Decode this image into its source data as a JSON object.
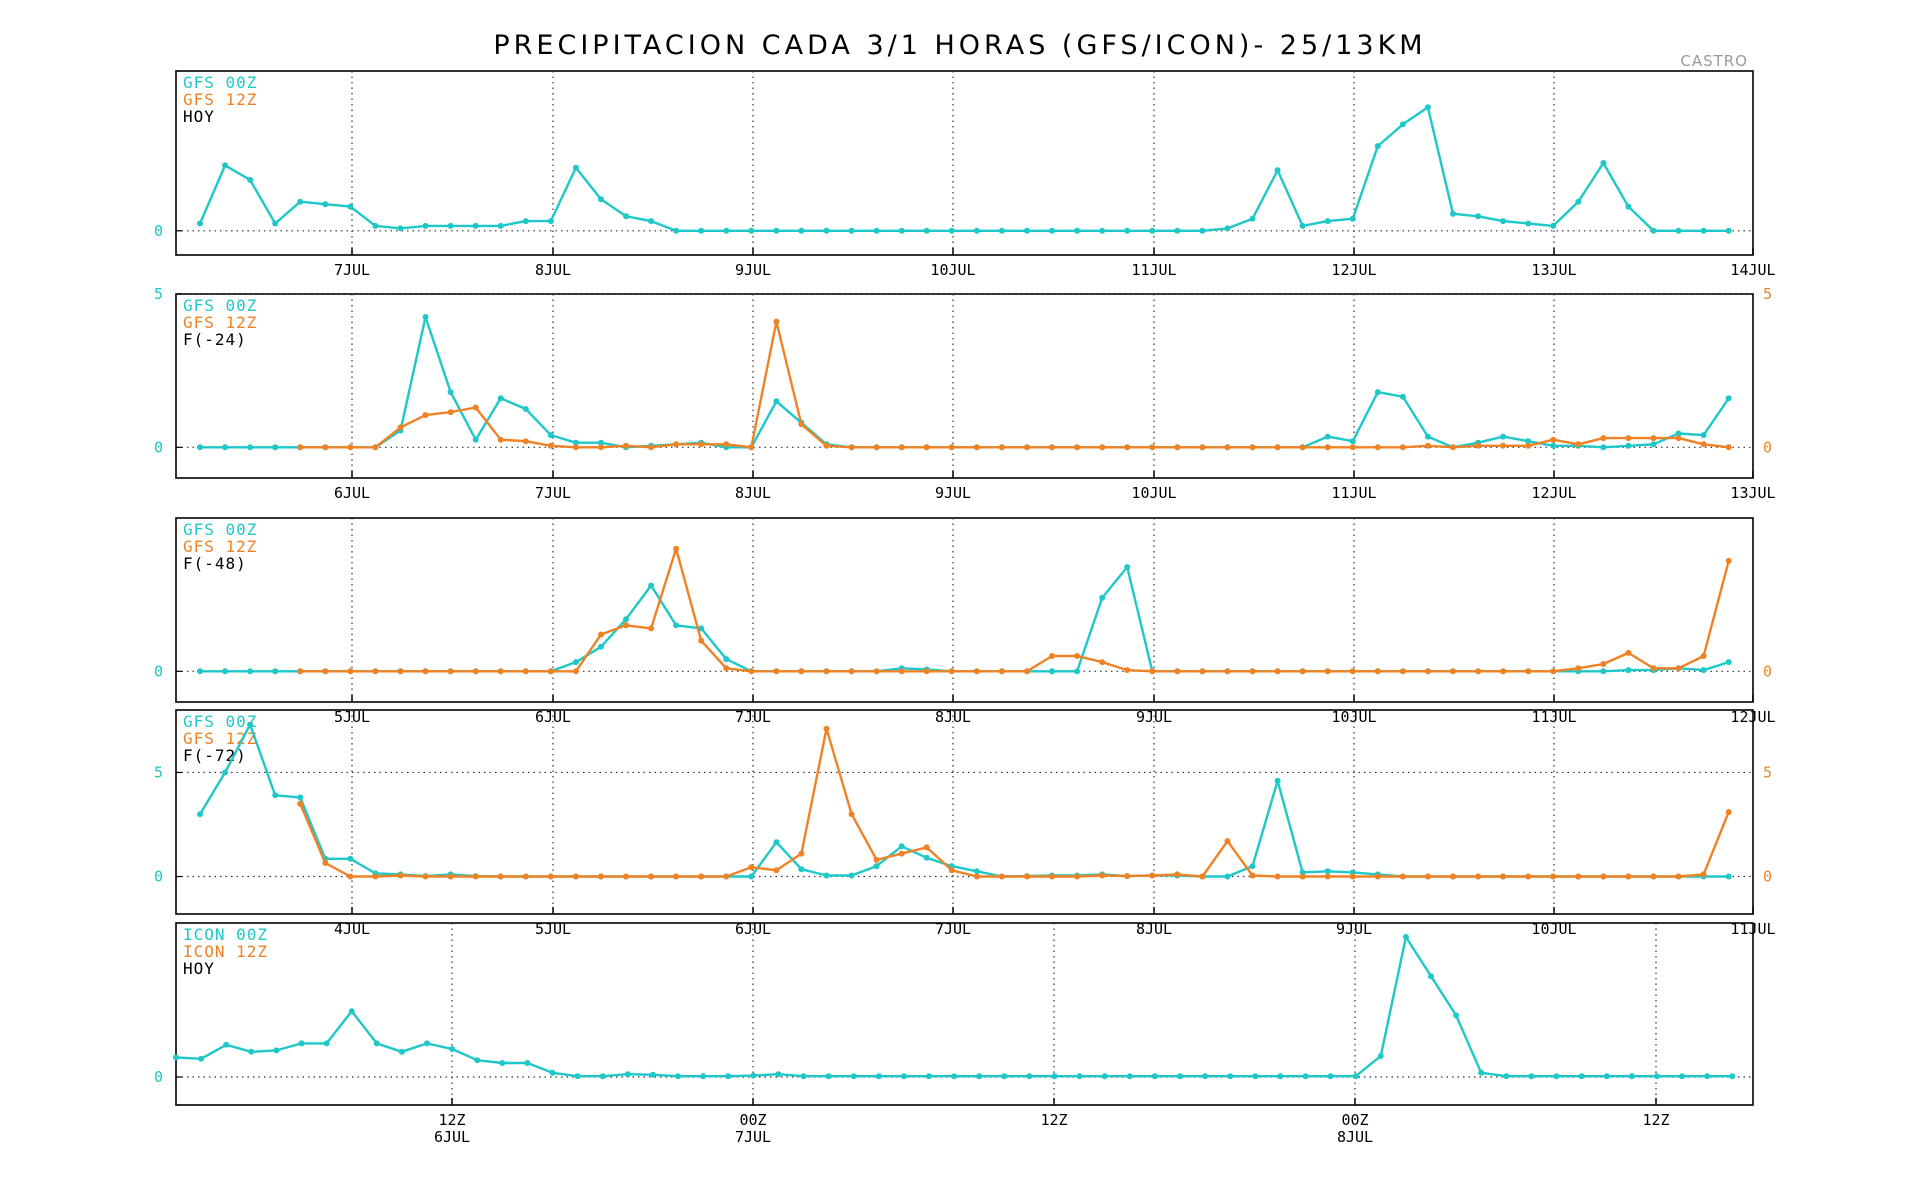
{
  "title": "PRECIPITACION CADA 3/1 HORAS (GFS/ICON)- 25/13KM",
  "station": "CASTRO",
  "colors": {
    "series_a": "#1ec8c8",
    "series_b": "#f08226",
    "text": "#000000",
    "frame": "#000000",
    "grid": "#333333"
  },
  "chart_data": [
    {
      "type": "line",
      "legend": [
        "GFS 00Z",
        "GFS 12Z",
        "HOY"
      ],
      "x_tick_labels": [
        "7JUL",
        "8JUL",
        "9JUL",
        "10JUL",
        "11JUL",
        "12JUL",
        "13JUL",
        "14JUL"
      ],
      "y_tick_labels_left": [
        "0"
      ],
      "y_tick_labels_right": [],
      "ylim": [
        -1,
        6.6
      ],
      "grid": true,
      "series": [
        {
          "values": [
            0.3,
            2.7,
            2.1,
            0.3,
            1.2,
            1.1,
            1.0,
            0.2,
            0.1,
            0.2,
            0.2,
            0.2,
            0.2,
            0.4,
            0.4,
            2.6,
            1.3,
            0.6,
            0.4,
            0,
            0,
            0,
            0,
            0,
            0,
            0,
            0,
            0,
            0,
            0,
            0,
            0,
            0,
            0,
            0,
            0,
            0,
            0,
            0,
            0,
            0,
            0.1,
            0.5,
            2.5,
            0.2,
            0.4,
            0.5,
            3.5,
            4.4,
            5.1,
            0.7,
            0.6,
            0.4,
            0.3,
            0.2,
            1.2,
            2.8,
            1.0,
            0,
            0,
            0,
            0,
            0
          ]
        }
      ]
    },
    {
      "type": "line",
      "legend": [
        "GFS 00Z",
        "GFS 12Z",
        "F(-24)"
      ],
      "x_tick_labels": [
        "6JUL",
        "7JUL",
        "8JUL",
        "9JUL",
        "10JUL",
        "11JUL",
        "12JUL",
        "13JUL"
      ],
      "y_tick_labels_left": [
        "5",
        "0"
      ],
      "y_tick_labels_right": [
        "5",
        "0"
      ],
      "ylim": [
        -1,
        5
      ],
      "grid": true,
      "series": [
        {
          "values": [
            0,
            0,
            0,
            0,
            0,
            0,
            0,
            0,
            0.55,
            4.25,
            1.8,
            0.25,
            1.6,
            1.25,
            0.4,
            0.15,
            0.15,
            0,
            0.05,
            0.1,
            0.15,
            0,
            0,
            1.5,
            0.8,
            0.1,
            0,
            0,
            0,
            0,
            0,
            0,
            0,
            0,
            0,
            0,
            0,
            0,
            0,
            0,
            0,
            0,
            0,
            0,
            0,
            0.35,
            0.2,
            1.8,
            1.65,
            0.35,
            0,
            0.15,
            0.35,
            0.2,
            0.05,
            0.05,
            0,
            0.05,
            0.1,
            0.45,
            0.4,
            1.6
          ]
        },
        {
          "values": [
            null,
            null,
            null,
            null,
            0,
            0,
            0,
            0,
            0.65,
            1.05,
            1.15,
            1.3,
            0.25,
            0.2,
            0.05,
            0,
            0,
            0.05,
            0,
            0.1,
            0.1,
            0.1,
            0,
            4.1,
            0.75,
            0.05,
            0,
            0,
            0,
            0,
            0,
            0,
            0,
            0,
            0,
            0,
            0,
            0,
            0,
            0,
            0,
            0,
            0,
            0,
            0,
            0,
            0,
            0,
            0,
            0.05,
            0,
            0.05,
            0.05,
            0.05,
            0.25,
            0.1,
            0.3,
            0.3,
            0.3,
            0.3,
            0.1,
            0
          ]
        }
      ]
    },
    {
      "type": "line",
      "legend": [
        "GFS 00Z",
        "GFS 12Z",
        "F(-48)"
      ],
      "x_tick_labels": [
        "5JUL",
        "6JUL",
        "7JUL",
        "8JUL",
        "9JUL",
        "10JUL",
        "11JUL",
        "12JUL"
      ],
      "y_tick_labels_left": [
        "0"
      ],
      "y_tick_labels_right": [
        "0"
      ],
      "ylim": [
        -0.5,
        2.5
      ],
      "grid": true,
      "series": [
        {
          "values": [
            0,
            0,
            0,
            0,
            0,
            0,
            0,
            0,
            0,
            0,
            0,
            0,
            0,
            0,
            0,
            0.15,
            0.4,
            0.85,
            1.4,
            0.75,
            0.7,
            0.2,
            0,
            0,
            0,
            0,
            0,
            0,
            0.05,
            0.03,
            0,
            0,
            0,
            0,
            0,
            0,
            1.2,
            1.7,
            0,
            0,
            0,
            0,
            0,
            0,
            0,
            0,
            0,
            0,
            0,
            0,
            0,
            0,
            0,
            0,
            0,
            0,
            0,
            0.02,
            0.02,
            0.05,
            0.02,
            0.15
          ]
        },
        {
          "values": [
            null,
            null,
            null,
            null,
            0,
            0,
            0,
            0,
            0,
            0,
            0,
            0,
            0,
            0,
            0,
            0,
            0.6,
            0.75,
            0.7,
            2.0,
            0.5,
            0.05,
            0,
            0,
            0,
            0,
            0,
            0,
            0,
            0,
            0,
            0,
            0,
            0,
            0.25,
            0.25,
            0.15,
            0.02,
            0,
            0,
            0,
            0,
            0,
            0,
            0,
            0,
            0,
            0,
            0,
            0,
            0,
            0,
            0,
            0,
            0,
            0.05,
            0.12,
            0.3,
            0.05,
            0.05,
            0.25,
            1.8
          ]
        }
      ]
    },
    {
      "type": "line",
      "legend": [
        "GFS 00Z",
        "GFS 12Z",
        "F(-72)"
      ],
      "x_tick_labels": [
        "4JUL",
        "5JUL",
        "6JUL",
        "7JUL",
        "8JUL",
        "9JUL",
        "10JUL",
        "11JUL"
      ],
      "y_tick_labels_left": [
        "5",
        "0"
      ],
      "y_tick_labels_right": [
        "5",
        "0"
      ],
      "ylim": [
        -1.8,
        8
      ],
      "grid": true,
      "series": [
        {
          "values": [
            3.0,
            5.0,
            7.3,
            3.9,
            3.8,
            0.85,
            0.85,
            0.15,
            0.1,
            0.02,
            0.1,
            0.02,
            0,
            0,
            0,
            0,
            0,
            0,
            0,
            0,
            0,
            0,
            0,
            1.65,
            0.35,
            0.05,
            0.05,
            0.5,
            1.45,
            0.9,
            0.5,
            0.25,
            0,
            0.02,
            0.05,
            0.05,
            0.1,
            0.02,
            0.05,
            0.05,
            0,
            0,
            0.5,
            4.6,
            0.2,
            0.25,
            0.2,
            0.1,
            0,
            0,
            0,
            0,
            0,
            0,
            0,
            0,
            0,
            0,
            0,
            0,
            0,
            0
          ]
        },
        {
          "values": [
            null,
            null,
            null,
            null,
            3.5,
            0.65,
            0,
            0,
            0.05,
            0,
            0,
            0,
            0,
            0,
            0,
            0,
            0,
            0,
            0,
            0,
            0,
            0,
            0.45,
            0.3,
            1.1,
            7.1,
            3.0,
            0.8,
            1.1,
            1.4,
            0.3,
            0,
            0,
            0,
            0,
            0,
            0.05,
            0.02,
            0.05,
            0.1,
            0,
            1.7,
            0.05,
            0,
            0,
            0,
            0,
            0,
            0,
            0,
            0,
            0,
            0,
            0,
            0,
            0,
            0,
            0,
            0,
            0,
            0.1,
            3.1
          ]
        }
      ]
    },
    {
      "type": "line",
      "legend": [
        "ICON 00Z",
        "ICON 12Z",
        "HOY"
      ],
      "x_tick_labels": [
        [
          "12Z",
          "6JUL"
        ],
        [
          "00Z",
          "7JUL"
        ],
        [
          "12Z",
          ""
        ],
        [
          "00Z",
          "8JUL"
        ],
        [
          "12Z",
          ""
        ]
      ],
      "y_tick_labels_left": [
        "0"
      ],
      "y_tick_labels_right": [],
      "ylim": [
        -1,
        5.5
      ],
      "grid": true,
      "series": [
        {
          "values": [
            0.7,
            0.65,
            1.15,
            0.9,
            0.95,
            1.2,
            1.2,
            2.35,
            1.2,
            0.9,
            1.2,
            1.0,
            0.6,
            0.5,
            0.5,
            0.15,
            0.03,
            0.03,
            0.1,
            0.08,
            0.03,
            0.03,
            0.03,
            0.05,
            0.1,
            0.03,
            0.03,
            0.03,
            0.03,
            0.03,
            0.03,
            0.03,
            0.03,
            0.03,
            0.03,
            0.03,
            0.03,
            0.03,
            0.03,
            0.03,
            0.03,
            0.03,
            0.03,
            0.03,
            0.03,
            0.03,
            0.03,
            0.03,
            0.75,
            5.0,
            3.6,
            2.2,
            0.15,
            0.03,
            0.03,
            0.03,
            0.03,
            0.03,
            0.03,
            0.03,
            0.03,
            0.03,
            0.03,
            0.03
          ]
        }
      ]
    }
  ]
}
